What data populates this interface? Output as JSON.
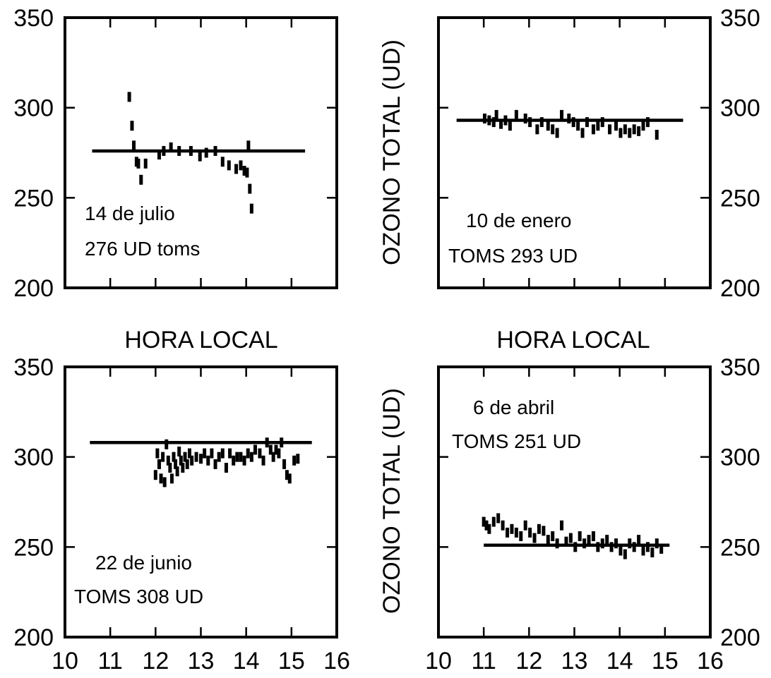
{
  "figure": {
    "x_axis_title": "HORA LOCAL",
    "y_axis_title": "OZONO TOTAL (UD)",
    "colors": {
      "ink": "#000000",
      "background": "#ffffff"
    }
  },
  "chart_data": [
    {
      "type": "scatter",
      "title": "",
      "xlim": [
        10,
        16
      ],
      "ylim": [
        200,
        350
      ],
      "x_ticks": [
        10,
        11,
        12,
        13,
        14,
        15,
        16
      ],
      "y_ticks": [
        200,
        250,
        300,
        350
      ],
      "x_tick_labels_shown": false,
      "y_axis_side": "left",
      "annotations": [
        "14 de julio",
        "276 UD toms"
      ],
      "reference_line": {
        "y": 276,
        "x": [
          10.6,
          15.3
        ]
      },
      "series": [
        {
          "points": [
            [
              11.42,
              306
            ],
            [
              11.48,
              290
            ],
            [
              11.52,
              279
            ],
            [
              11.58,
              270
            ],
            [
              11.62,
              269
            ],
            [
              11.68,
              260
            ],
            [
              11.78,
              269
            ],
            [
              12.08,
              274
            ],
            [
              12.18,
              276
            ],
            [
              12.34,
              278
            ],
            [
              12.52,
              276
            ],
            [
              12.78,
              276
            ],
            [
              12.98,
              273
            ],
            [
              13.12,
              275
            ],
            [
              13.32,
              276
            ],
            [
              13.48,
              270
            ],
            [
              13.62,
              268
            ],
            [
              13.78,
              266
            ],
            [
              13.88,
              268
            ],
            [
              13.96,
              265
            ],
            [
              14.02,
              264
            ],
            [
              14.05,
              279
            ],
            [
              14.08,
              255
            ],
            [
              14.12,
              244
            ]
          ]
        }
      ]
    },
    {
      "type": "scatter",
      "title": "",
      "xlim": [
        10,
        16
      ],
      "ylim": [
        200,
        350
      ],
      "x_ticks": [
        10,
        11,
        12,
        13,
        14,
        15,
        16
      ],
      "y_ticks": [
        200,
        250,
        300,
        350
      ],
      "x_tick_labels_shown": false,
      "y_axis_side": "right",
      "annotations": [
        "10 de enero",
        "TOMS 293 UD"
      ],
      "reference_line": {
        "y": 293,
        "x": [
          10.4,
          15.4
        ]
      },
      "series": [
        {
          "points": [
            [
              11.02,
              294
            ],
            [
              11.12,
              293
            ],
            [
              11.22,
              292
            ],
            [
              11.28,
              296
            ],
            [
              11.38,
              291
            ],
            [
              11.48,
              293
            ],
            [
              11.58,
              290
            ],
            [
              11.72,
              296
            ],
            [
              11.92,
              294
            ],
            [
              12.02,
              292
            ],
            [
              12.18,
              288
            ],
            [
              12.28,
              292
            ],
            [
              12.42,
              290
            ],
            [
              12.52,
              288
            ],
            [
              12.62,
              286
            ],
            [
              12.72,
              296
            ],
            [
              12.88,
              294
            ],
            [
              12.98,
              292
            ],
            [
              13.08,
              290
            ],
            [
              13.18,
              286
            ],
            [
              13.28,
              292
            ],
            [
              13.42,
              288
            ],
            [
              13.52,
              290
            ],
            [
              13.62,
              292
            ],
            [
              13.78,
              288
            ],
            [
              13.92,
              290
            ],
            [
              14.02,
              286
            ],
            [
              14.12,
              288
            ],
            [
              14.22,
              286
            ],
            [
              14.32,
              288
            ],
            [
              14.42,
              287
            ],
            [
              14.52,
              290
            ],
            [
              14.62,
              292
            ],
            [
              14.82,
              285
            ]
          ]
        }
      ]
    },
    {
      "type": "scatter",
      "title": "",
      "xlim": [
        10,
        16
      ],
      "ylim": [
        200,
        350
      ],
      "x_ticks": [
        10,
        11,
        12,
        13,
        14,
        15,
        16
      ],
      "y_ticks": [
        200,
        250,
        300,
        350
      ],
      "x_tick_labels_shown": true,
      "y_axis_side": "left",
      "annotations": [
        "22 de junio",
        "TOMS 308 UD"
      ],
      "reference_line": {
        "y": 308,
        "x": [
          10.55,
          15.45
        ]
      },
      "series": [
        {
          "points": [
            [
              12.0,
              290
            ],
            [
              12.04,
              302
            ],
            [
              12.08,
              296
            ],
            [
              12.12,
              288
            ],
            [
              12.16,
              300
            ],
            [
              12.2,
              286
            ],
            [
              12.24,
              307
            ],
            [
              12.28,
              298
            ],
            [
              12.32,
              294
            ],
            [
              12.36,
              288
            ],
            [
              12.4,
              300
            ],
            [
              12.44,
              296
            ],
            [
              12.48,
              292
            ],
            [
              12.52,
              303
            ],
            [
              12.56,
              298
            ],
            [
              12.6,
              294
            ],
            [
              12.65,
              300
            ],
            [
              12.7,
              296
            ],
            [
              12.75,
              302
            ],
            [
              12.8,
              298
            ],
            [
              12.9,
              300
            ],
            [
              13.0,
              299
            ],
            [
              13.08,
              302
            ],
            [
              13.16,
              298
            ],
            [
              13.24,
              302
            ],
            [
              13.32,
              296
            ],
            [
              13.4,
              300
            ],
            [
              13.48,
              302
            ],
            [
              13.56,
              294
            ],
            [
              13.64,
              302
            ],
            [
              13.72,
              298
            ],
            [
              13.8,
              300
            ],
            [
              13.88,
              300
            ],
            [
              13.96,
              298
            ],
            [
              14.04,
              302
            ],
            [
              14.12,
              300
            ],
            [
              14.2,
              304
            ],
            [
              14.3,
              302
            ],
            [
              14.38,
              298
            ],
            [
              14.46,
              308
            ],
            [
              14.54,
              304
            ],
            [
              14.6,
              300
            ],
            [
              14.66,
              304
            ],
            [
              14.72,
              302
            ],
            [
              14.78,
              308
            ],
            [
              14.84,
              296
            ],
            [
              14.9,
              290
            ],
            [
              14.96,
              288
            ],
            [
              15.06,
              298
            ],
            [
              15.14,
              299
            ]
          ]
        }
      ]
    },
    {
      "type": "scatter",
      "title": "",
      "xlim": [
        10,
        16
      ],
      "ylim": [
        200,
        350
      ],
      "x_ticks": [
        10,
        11,
        12,
        13,
        14,
        15,
        16
      ],
      "y_ticks": [
        200,
        250,
        300,
        350
      ],
      "x_tick_labels_shown": true,
      "y_axis_side": "right",
      "annotations": [
        "6 de abril",
        "TOMS 251 UD"
      ],
      "reference_line": {
        "y": 251,
        "x": [
          11.0,
          15.1
        ]
      },
      "series": [
        {
          "points": [
            [
              11.0,
              264
            ],
            [
              11.06,
              262
            ],
            [
              11.12,
              260
            ],
            [
              11.22,
              264
            ],
            [
              11.32,
              266
            ],
            [
              11.42,
              262
            ],
            [
              11.52,
              258
            ],
            [
              11.62,
              260
            ],
            [
              11.72,
              258
            ],
            [
              11.82,
              256
            ],
            [
              11.92,
              262
            ],
            [
              12.02,
              258
            ],
            [
              12.12,
              255
            ],
            [
              12.22,
              260
            ],
            [
              12.32,
              259
            ],
            [
              12.42,
              254
            ],
            [
              12.52,
              256
            ],
            [
              12.62,
              252
            ],
            [
              12.72,
              262
            ],
            [
              12.82,
              253
            ],
            [
              12.92,
              255
            ],
            [
              13.02,
              250
            ],
            [
              13.12,
              256
            ],
            [
              13.22,
              252
            ],
            [
              13.32,
              254
            ],
            [
              13.42,
              256
            ],
            [
              13.52,
              250
            ],
            [
              13.62,
              252
            ],
            [
              13.72,
              254
            ],
            [
              13.82,
              250
            ],
            [
              13.92,
              252
            ],
            [
              14.02,
              248
            ],
            [
              14.12,
              246
            ],
            [
              14.22,
              252
            ],
            [
              14.32,
              250
            ],
            [
              14.42,
              254
            ],
            [
              14.52,
              248
            ],
            [
              14.62,
              250
            ],
            [
              14.72,
              247
            ],
            [
              14.82,
              252
            ],
            [
              14.92,
              249
            ]
          ]
        }
      ]
    }
  ]
}
